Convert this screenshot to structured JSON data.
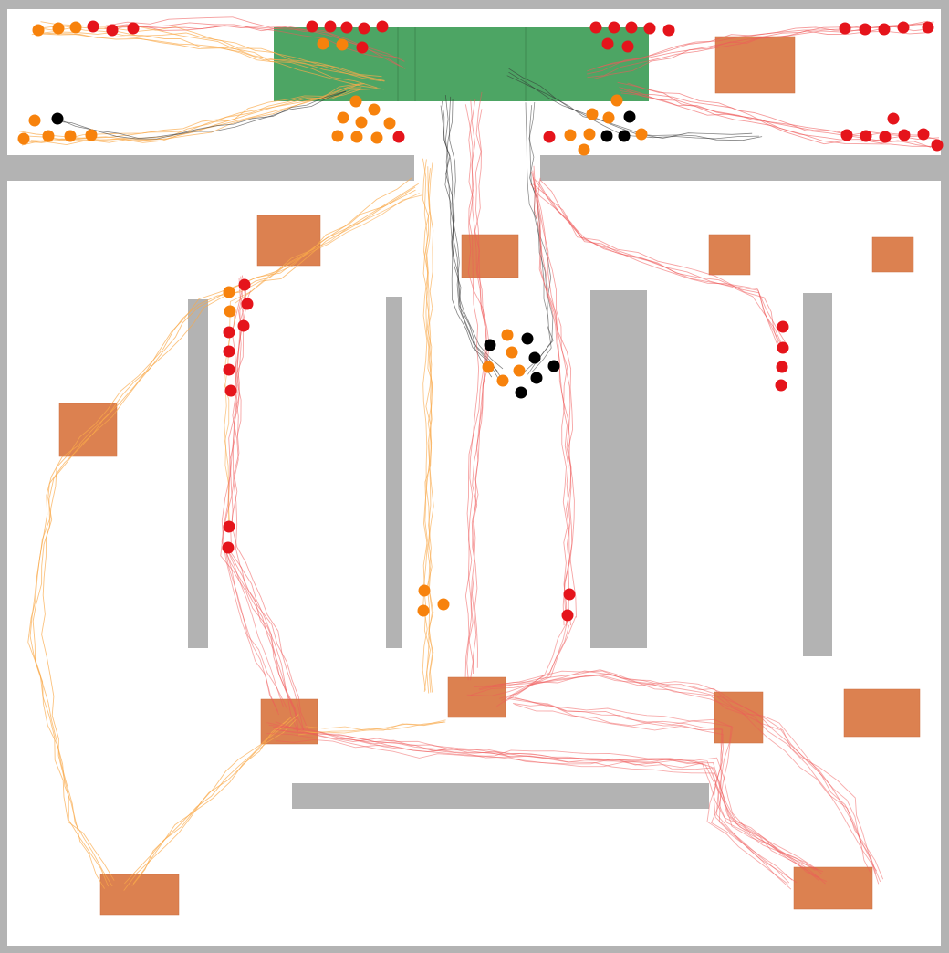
{
  "colors": {
    "frame": "#b3b3b3",
    "floor": "#ffffff",
    "wall": "#b3b3b3",
    "target_zone": "#4da564",
    "obstacle": "#dc8150",
    "agent_red": "#e5141b",
    "agent_orange": "#f7820c",
    "agent_black": "#000000",
    "trail_red": "#ef5a5a",
    "trail_orange": "#f9a94a",
    "trail_black": "#333333"
  },
  "agents": {
    "red": 60,
    "orange": 42,
    "black": 14
  }
}
